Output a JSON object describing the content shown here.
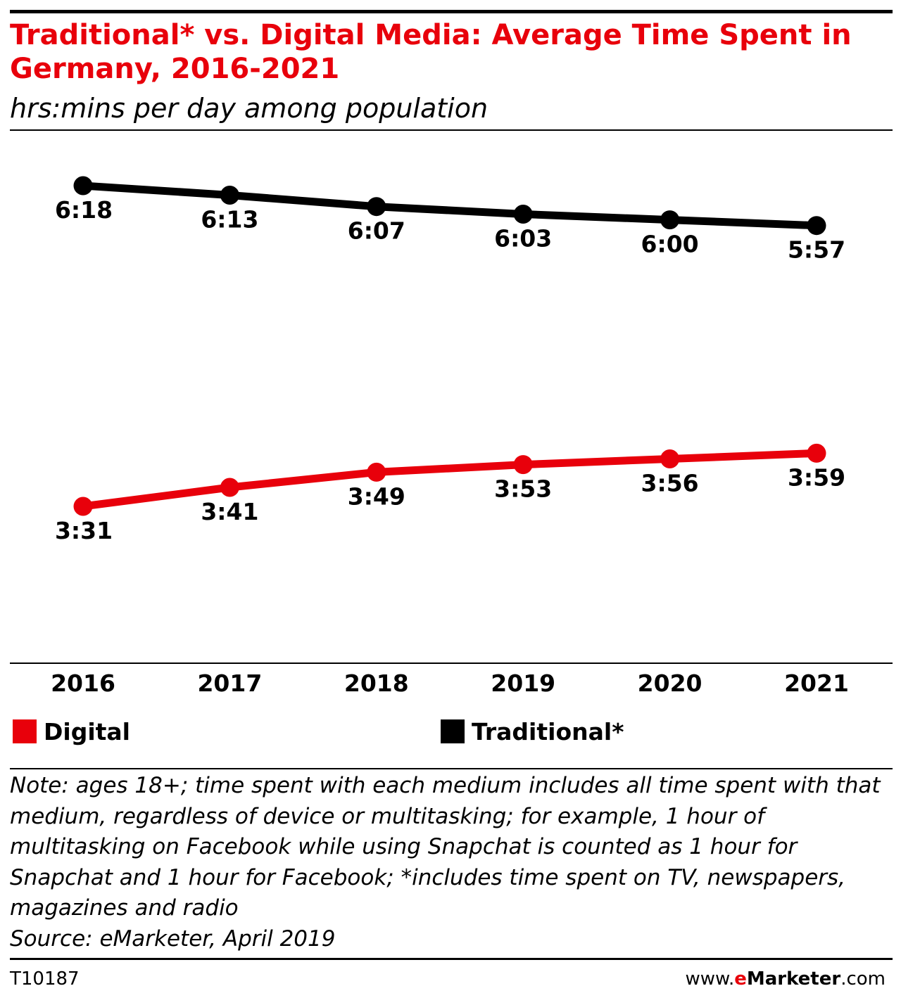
{
  "title": "Traditional* vs. Digital Media: Average Time Spent in Germany, 2016-2021",
  "subtitle": "hrs:mins per day among population",
  "colors": {
    "digital": "#e8000b",
    "traditional": "#000000",
    "title": "#e8000b"
  },
  "chart_data": {
    "type": "line",
    "x": [
      "2016",
      "2017",
      "2018",
      "2019",
      "2020",
      "2021"
    ],
    "unit": "hrs:mins",
    "series": [
      {
        "name": "Traditional*",
        "color": "#000000",
        "values": [
          378,
          373,
          367,
          363,
          360,
          357
        ],
        "labels": [
          "6:18",
          "6:13",
          "6:07",
          "6:03",
          "6:00",
          "5:57"
        ]
      },
      {
        "name": "Digital",
        "color": "#e8000b",
        "values": [
          211,
          221,
          229,
          233,
          236,
          239
        ],
        "labels": [
          "3:31",
          "3:41",
          "3:49",
          "3:53",
          "3:56",
          "3:59"
        ]
      }
    ],
    "grid": false,
    "legend": "bottom"
  },
  "legend": [
    {
      "name": "Digital",
      "color": "#e8000b"
    },
    {
      "name": "Traditional*",
      "color": "#000000"
    }
  ],
  "note": "Note: ages 18+; time spent with each medium includes all time spent with that medium, regardless of device or multitasking; for example, 1 hour of multitasking on Facebook while using Snapchat is counted as 1 hour for Snapchat and 1 hour for Facebook; *includes time spent on TV, newspapers, magazines and radio",
  "source": "Source: eMarketer, April 2019",
  "footer": {
    "id": "T10187",
    "site_prefix": "www.",
    "site_brand_e": "e",
    "site_brand_rest": "Marketer",
    "site_suffix": ".com"
  }
}
